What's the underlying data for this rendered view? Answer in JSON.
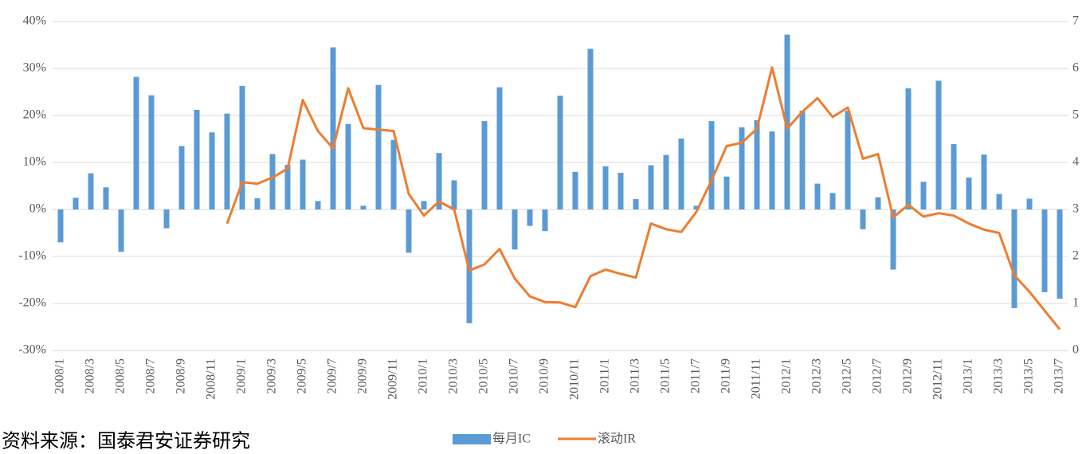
{
  "chart_data": {
    "type": "bar_line",
    "categories": [
      "2008/1",
      null,
      "2008/3",
      null,
      "2008/5",
      null,
      "2008/7",
      null,
      "2008/9",
      null,
      "2008/11",
      null,
      "2009/1",
      null,
      "2009/3",
      null,
      "2009/5",
      null,
      "2009/7",
      null,
      "2009/9",
      null,
      "2009/11",
      null,
      "2010/1",
      null,
      "2010/3",
      null,
      "2010/5",
      null,
      "2010/7",
      null,
      "2010/9",
      null,
      "2010/11",
      null,
      "2011/1",
      null,
      "2011/3",
      null,
      "2011/5",
      null,
      "2011/7",
      null,
      "2011/9",
      null,
      "2011/11",
      null,
      "2012/1",
      null,
      "2012/3",
      null,
      "2012/5",
      null,
      "2012/7",
      null,
      "2012/9",
      null,
      "2012/11",
      null,
      "2013/1",
      null,
      "2013/3",
      null,
      "2013/5",
      null,
      "2013/7"
    ],
    "series": [
      {
        "name": "每月IC",
        "color": "#5b9bd5",
        "type": "bar",
        "values": [
          -7,
          2.5,
          7.7,
          4.7,
          -9,
          28.2,
          24.3,
          -4,
          13.5,
          21.2,
          16.4,
          20.4,
          26.3,
          2.4,
          11.8,
          9.5,
          10.6,
          1.8,
          34.5,
          18.2,
          0.8,
          26.5,
          14.8,
          -9.2,
          1.8,
          12,
          6.2,
          -24.2,
          18.8,
          26,
          -8.5,
          -3.5,
          -4.6,
          24.2,
          8,
          34.2,
          9.2,
          7.8,
          2.2,
          9.4,
          11.6,
          15.1,
          0.8,
          18.8,
          7,
          17.5,
          19,
          16.6,
          37.2,
          21,
          5.5,
          3.5,
          21,
          -4.2,
          2.6,
          -12.8,
          25.8,
          5.9,
          27.4,
          13.9,
          6.8,
          11.7,
          3.3,
          -21,
          2.3,
          -17.6,
          -19
        ]
      },
      {
        "name": "滚动IR",
        "color": "#ed7d31",
        "type": "line",
        "axis": "y2",
        "values": [
          null,
          null,
          null,
          null,
          null,
          null,
          null,
          null,
          null,
          null,
          null,
          2.7,
          3.58,
          3.55,
          3.68,
          3.87,
          5.33,
          4.67,
          4.3,
          5.58,
          4.73,
          4.7,
          4.67,
          3.33,
          2.87,
          3.17,
          3.0,
          1.7,
          1.83,
          2.16,
          1.53,
          1.15,
          1.03,
          1.02,
          0.92,
          1.58,
          1.72,
          1.63,
          1.55,
          2.7,
          2.58,
          2.52,
          2.95,
          3.62,
          4.35,
          4.42,
          4.72,
          6.02,
          4.72,
          5.08,
          5.37,
          4.97,
          5.17,
          4.08,
          4.18,
          2.83,
          3.1,
          2.85,
          2.92,
          2.87,
          2.7,
          2.57,
          2.5,
          1.6,
          1.25,
          0.85,
          0.45
        ]
      }
    ],
    "ylim": [
      -30,
      40
    ],
    "yticks": [
      {
        "value": -30,
        "label": "-30%"
      },
      {
        "value": -20,
        "label": "-20%"
      },
      {
        "value": -10,
        "label": "-10%"
      },
      {
        "value": 0,
        "label": "0%"
      },
      {
        "value": 10,
        "label": "10%"
      },
      {
        "value": 20,
        "label": "20%"
      },
      {
        "value": 30,
        "label": "30%"
      },
      {
        "value": 40,
        "label": "40%"
      }
    ],
    "y2lim": [
      0,
      7
    ],
    "y2ticks": [
      0,
      1,
      2,
      3,
      4,
      5,
      6,
      7
    ],
    "grid": true,
    "legend": "bottom",
    "source": "资料来源：国泰君安证券研究"
  }
}
